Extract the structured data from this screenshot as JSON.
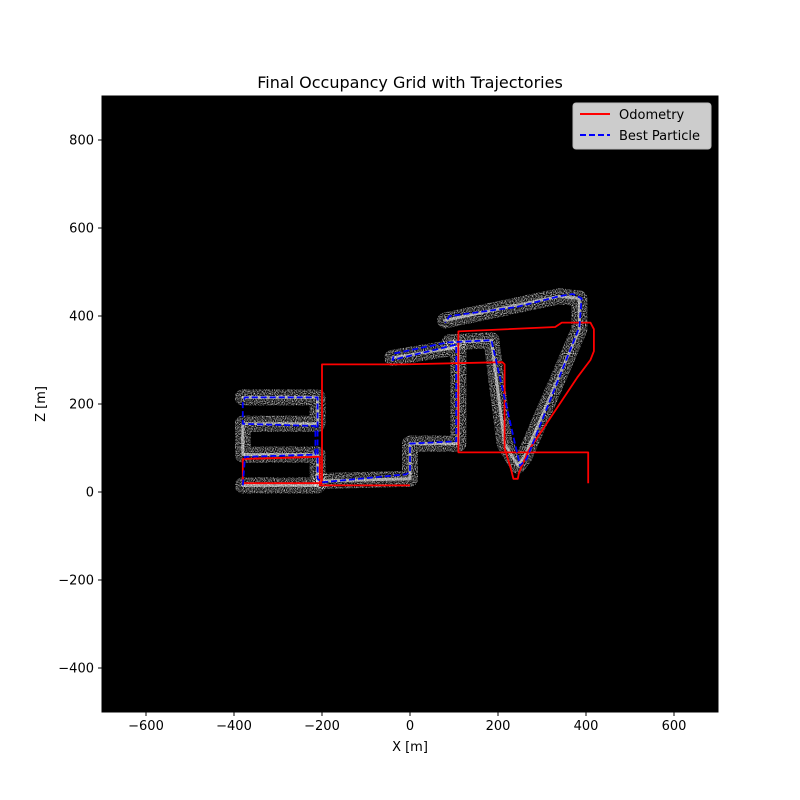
{
  "chart_data": {
    "type": "line",
    "title": "Final Occupancy Grid with Trajectories",
    "xlabel": "X [m]",
    "ylabel": "Z [m]",
    "xlim": [
      -700,
      700
    ],
    "ylim": [
      -500,
      900
    ],
    "x_ticks": [
      -600,
      -400,
      -200,
      0,
      200,
      400,
      600
    ],
    "y_ticks": [
      -400,
      -200,
      0,
      200,
      400,
      600,
      800
    ],
    "x_tick_labels": [
      "−600",
      "−400",
      "−200",
      "0",
      "200",
      "400",
      "600"
    ],
    "y_tick_labels": [
      "−400",
      "−200",
      "0",
      "200",
      "400",
      "600",
      "800"
    ],
    "grid": false,
    "background_color": "#000000",
    "occupancy_color": "#ffffff",
    "legend_position": "top-right",
    "series": [
      {
        "name": "Odometry",
        "color": "#ff0000",
        "linestyle": "solid",
        "points": [
          [
            405,
            20
          ],
          [
            405,
            90
          ],
          [
            110,
            90
          ],
          [
            110,
            365
          ],
          [
            330,
            375
          ],
          [
            345,
            385
          ],
          [
            410,
            385
          ],
          [
            418,
            370
          ],
          [
            418,
            320
          ],
          [
            410,
            300
          ],
          [
            380,
            260
          ],
          [
            320,
            170
          ],
          [
            270,
            95
          ],
          [
            248,
            45
          ],
          [
            245,
            30
          ],
          [
            235,
            30
          ],
          [
            230,
            50
          ],
          [
            215,
            100
          ],
          [
            215,
            290
          ],
          [
            210,
            295
          ],
          [
            -15,
            290
          ],
          [
            -10,
            290
          ],
          [
            -200,
            290
          ],
          [
            -200,
            20
          ],
          [
            -380,
            20
          ],
          [
            -380,
            75
          ],
          [
            -205,
            80
          ],
          [
            -205,
            15
          ],
          [
            0,
            15
          ]
        ]
      },
      {
        "name": "Best Particle",
        "color": "#0000ff",
        "linestyle": "dashed",
        "points": [
          [
            -380,
            15
          ],
          [
            -375,
            80
          ],
          [
            -215,
            85
          ],
          [
            -215,
            150
          ],
          [
            -380,
            155
          ],
          [
            -380,
            205
          ],
          [
            -375,
            215
          ],
          [
            -210,
            215
          ],
          [
            -210,
            30
          ],
          [
            -200,
            22
          ],
          [
            -10,
            40
          ],
          [
            0,
            45
          ],
          [
            0,
            110
          ],
          [
            105,
            115
          ],
          [
            105,
            335
          ],
          [
            -40,
            300
          ],
          [
            -35,
            315
          ],
          [
            85,
            340
          ],
          [
            185,
            345
          ],
          [
            250,
            60
          ],
          [
            265,
            75
          ],
          [
            385,
            375
          ],
          [
            390,
            440
          ],
          [
            370,
            450
          ],
          [
            340,
            445
          ],
          [
            240,
            420
          ],
          [
            90,
            400
          ],
          [
            80,
            385
          ]
        ]
      }
    ],
    "occupancy_path": [
      [
        -380,
        15
      ],
      [
        -210,
        15
      ],
      [
        -210,
        85
      ],
      [
        -380,
        85
      ],
      [
        -380,
        155
      ],
      [
        -210,
        155
      ],
      [
        -210,
        215
      ],
      [
        -380,
        215
      ]
    ],
    "occupancy_path_2": [
      [
        -205,
        25
      ],
      [
        0,
        30
      ],
      [
        0,
        110
      ],
      [
        110,
        110
      ],
      [
        110,
        330
      ],
      [
        -40,
        305
      ]
    ],
    "occupancy_path_3": [
      [
        80,
        390
      ],
      [
        340,
        445
      ],
      [
        385,
        440
      ],
      [
        385,
        370
      ],
      [
        260,
        80
      ],
      [
        245,
        60
      ],
      [
        215,
        110
      ],
      [
        185,
        345
      ],
      [
        90,
        340
      ]
    ]
  }
}
